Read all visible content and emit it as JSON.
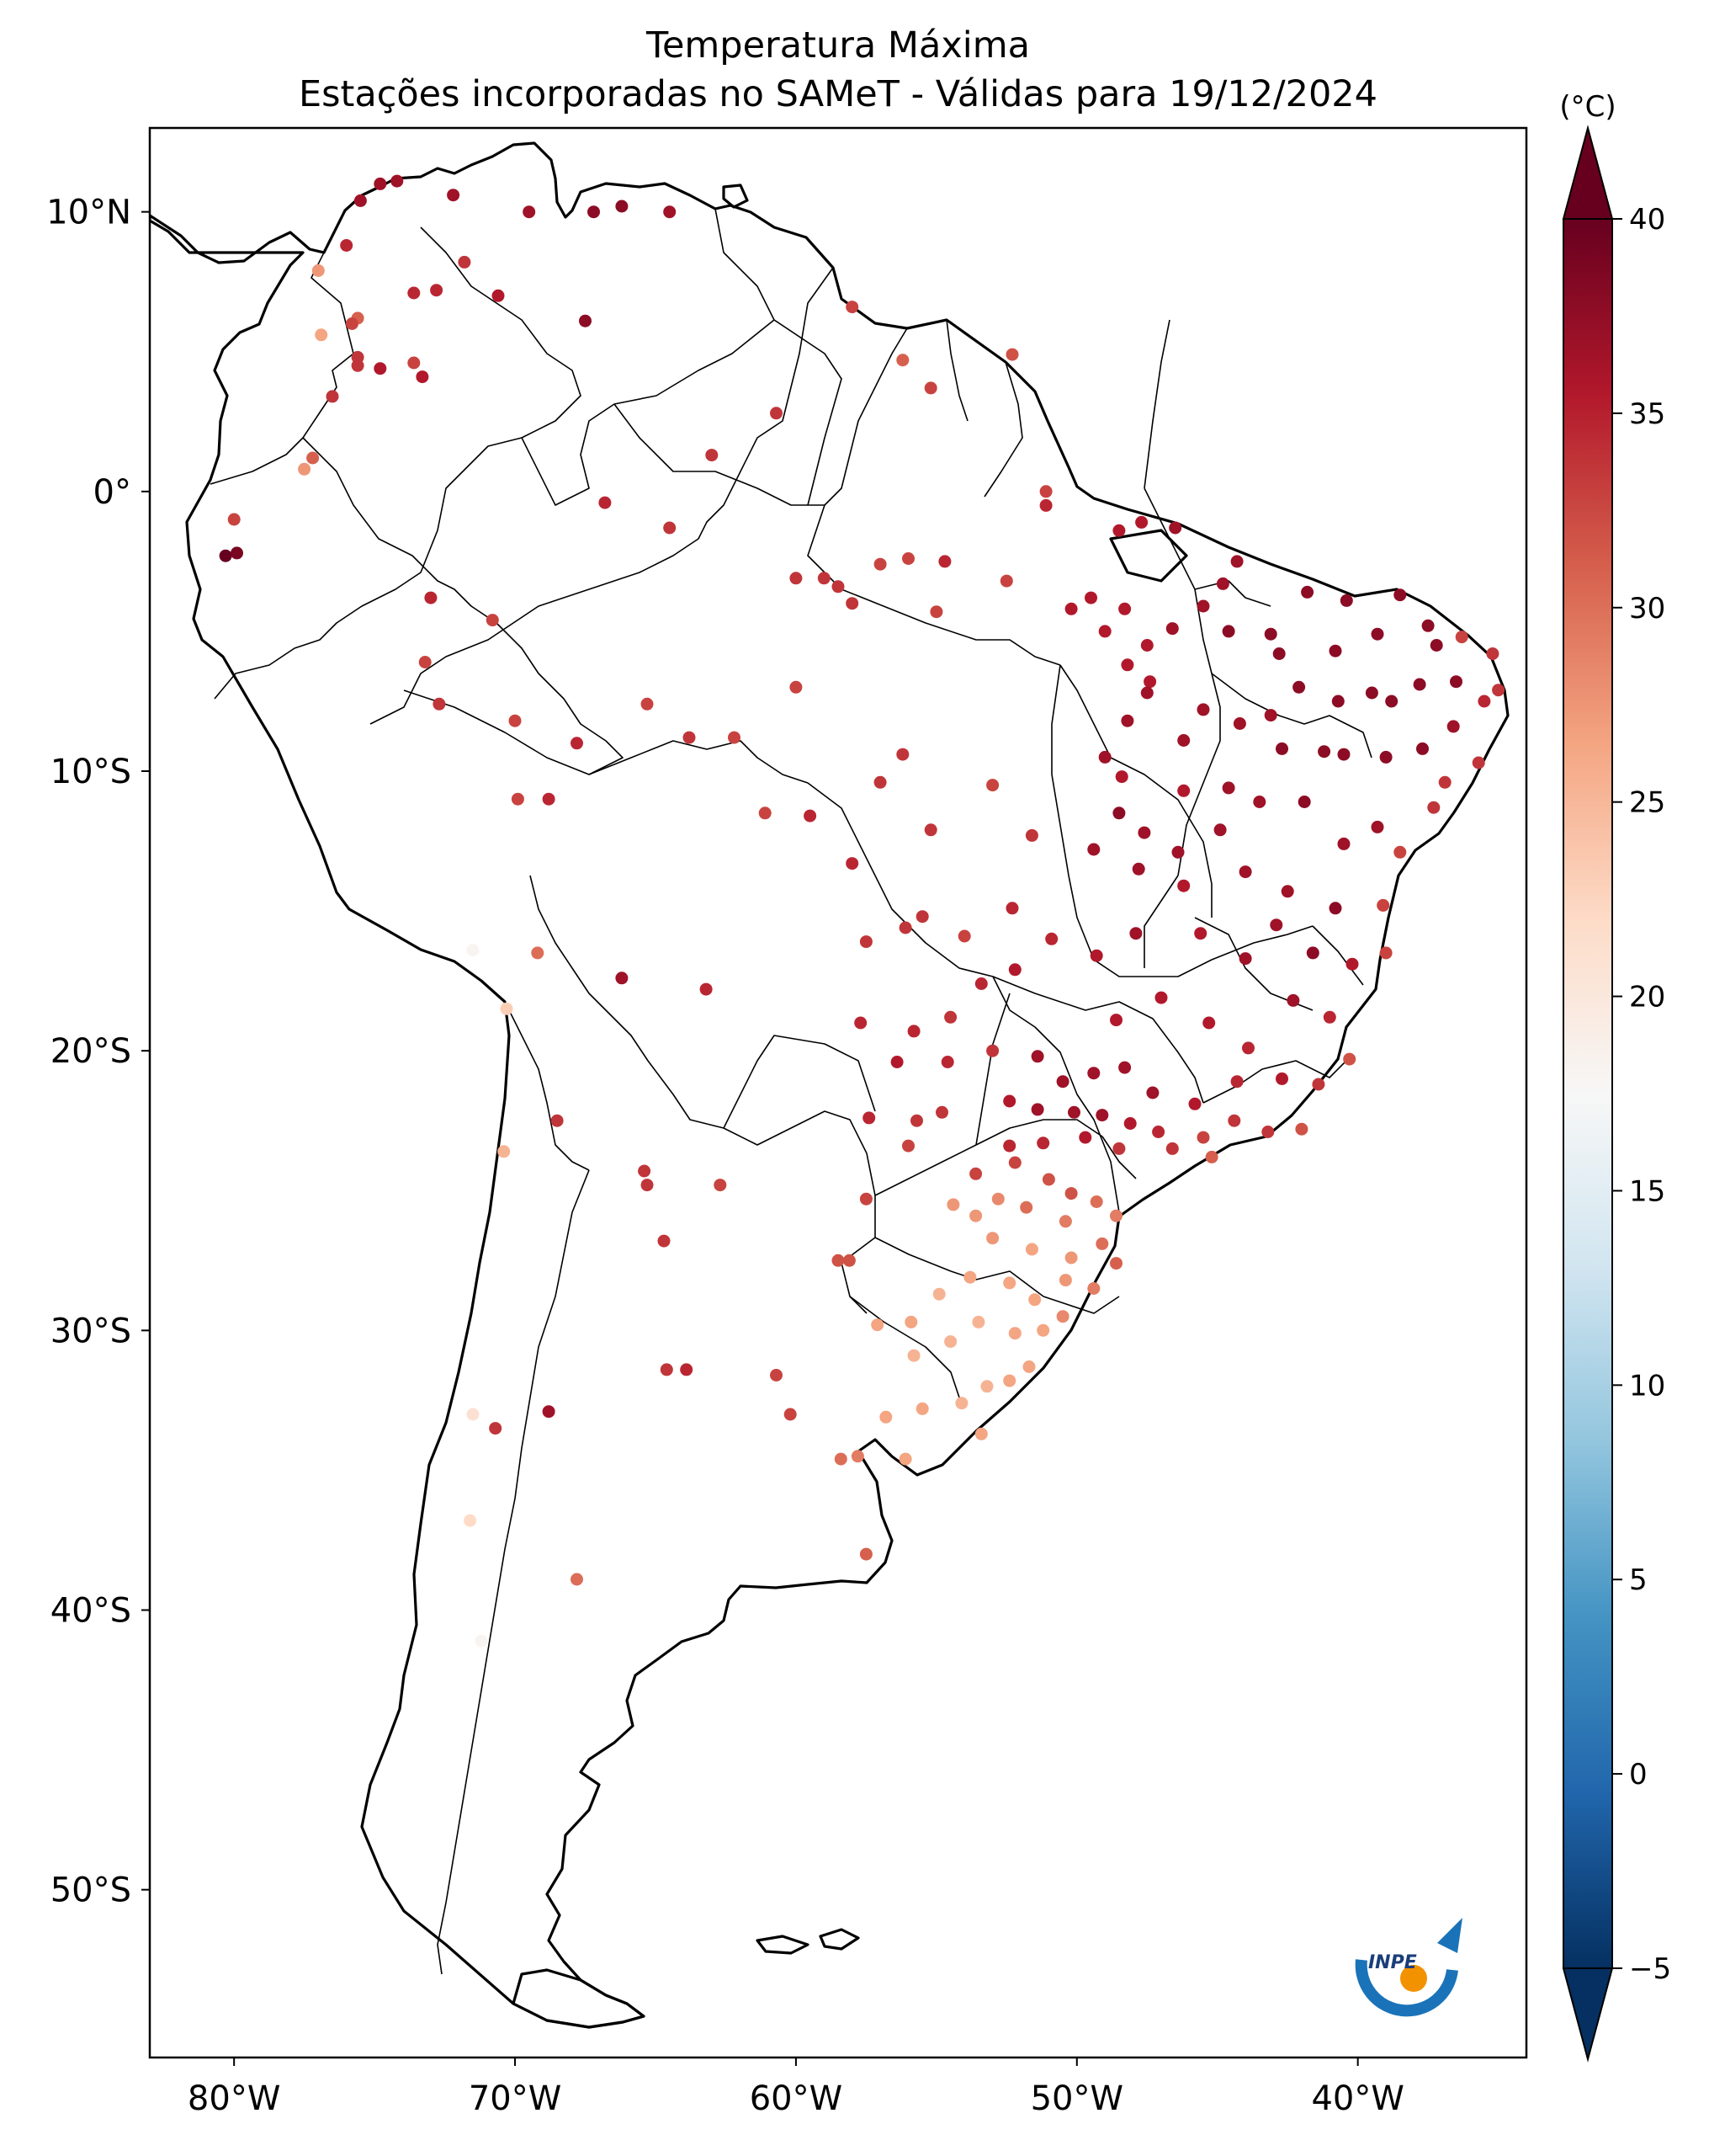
{
  "title": {
    "line1": "Temperatura Máxima",
    "line2": "Estações incorporadas no SAMeT - Válidas para 19/12/2024"
  },
  "map": {
    "lon_range": [
      -83,
      -34
    ],
    "lat_range": [
      -56,
      13
    ],
    "lat_ticks": [
      {
        "value": 10,
        "label": "10°N"
      },
      {
        "value": 0,
        "label": "0°"
      },
      {
        "value": -10,
        "label": "10°S"
      },
      {
        "value": -20,
        "label": "20°S"
      },
      {
        "value": -30,
        "label": "30°S"
      },
      {
        "value": -40,
        "label": "40°S"
      },
      {
        "value": -50,
        "label": "50°S"
      }
    ],
    "lon_ticks": [
      {
        "value": -80,
        "label": "80°W"
      },
      {
        "value": -70,
        "label": "70°W"
      },
      {
        "value": -60,
        "label": "60°W"
      },
      {
        "value": -50,
        "label": "50°W"
      },
      {
        "value": -40,
        "label": "40°W"
      }
    ]
  },
  "colorbar": {
    "unit_label": "(°C)",
    "min": -5,
    "max": 40,
    "ticks": [
      -5,
      0,
      5,
      10,
      15,
      20,
      25,
      30,
      35,
      40
    ],
    "extend": "both",
    "colormap": "RdBu_r"
  },
  "logo": {
    "text": "INPE",
    "ring_color": "#1a73b8",
    "dot_color": "#f39200"
  },
  "chart_data": {
    "type": "scatter",
    "title": "Temperatura Máxima — Estações incorporadas no SAMeT - Válidas para 19/12/2024",
    "x_label": "longitude",
    "y_label": "latitude",
    "xlim": [
      -83,
      -34
    ],
    "ylim": [
      -56,
      13
    ],
    "value_label": "Temperatura máxima (°C)",
    "points": [
      [
        -75.5,
        10.4,
        37
      ],
      [
        -74.8,
        11.0,
        37
      ],
      [
        -74.2,
        11.1,
        37
      ],
      [
        -72.2,
        10.6,
        37
      ],
      [
        -69.5,
        10.0,
        37
      ],
      [
        -66.2,
        10.2,
        38
      ],
      [
        -67.2,
        10.0,
        38
      ],
      [
        -64.5,
        10.0,
        37
      ],
      [
        -76.0,
        8.8,
        35
      ],
      [
        -77.0,
        7.9,
        27
      ],
      [
        -71.8,
        8.2,
        34
      ],
      [
        -73.6,
        7.1,
        35
      ],
      [
        -72.8,
        7.2,
        35
      ],
      [
        -70.6,
        7.0,
        36
      ],
      [
        -67.5,
        6.1,
        38
      ],
      [
        -75.6,
        6.2,
        31
      ],
      [
        -75.8,
        6.0,
        33
      ],
      [
        -76.9,
        5.6,
        26
      ],
      [
        -75.6,
        4.8,
        34
      ],
      [
        -75.6,
        4.5,
        34
      ],
      [
        -74.8,
        4.4,
        36
      ],
      [
        -73.6,
        4.6,
        33
      ],
      [
        -73.3,
        4.1,
        36
      ],
      [
        -76.5,
        3.4,
        34
      ],
      [
        -77.2,
        1.2,
        31
      ],
      [
        -77.5,
        0.8,
        27
      ],
      [
        -80.0,
        -1.0,
        33
      ],
      [
        -80.3,
        -2.3,
        40
      ],
      [
        -79.9,
        -2.2,
        39
      ],
      [
        -66.8,
        -0.4,
        35
      ],
      [
        -63.0,
        1.3,
        34
      ],
      [
        -60.7,
        2.8,
        34
      ],
      [
        -58.0,
        6.6,
        33
      ],
      [
        -56.2,
        4.7,
        31
      ],
      [
        -55.2,
        3.7,
        33
      ],
      [
        -52.3,
        4.9,
        32
      ],
      [
        -51.1,
        0.0,
        33
      ],
      [
        -51.1,
        -0.5,
        35
      ],
      [
        -48.5,
        -1.4,
        36
      ],
      [
        -47.7,
        -1.1,
        36
      ],
      [
        -46.5,
        -1.3,
        37
      ],
      [
        -44.3,
        -2.5,
        37
      ],
      [
        -64.5,
        -1.3,
        34
      ],
      [
        -60.0,
        -3.1,
        34
      ],
      [
        -59.0,
        -3.1,
        34
      ],
      [
        -58.5,
        -3.4,
        34
      ],
      [
        -57.0,
        -2.6,
        33
      ],
      [
        -56.0,
        -2.4,
        33
      ],
      [
        -54.7,
        -2.5,
        35
      ],
      [
        -55.0,
        -4.3,
        33
      ],
      [
        -52.5,
        -3.2,
        33
      ],
      [
        -49.5,
        -3.8,
        36
      ],
      [
        -50.2,
        -4.2,
        36
      ],
      [
        -48.3,
        -4.2,
        36
      ],
      [
        -49.0,
        -5.0,
        36
      ],
      [
        -47.5,
        -5.5,
        36
      ],
      [
        -48.2,
        -6.2,
        36
      ],
      [
        -47.4,
        -6.8,
        36
      ],
      [
        -44.8,
        -3.3,
        37
      ],
      [
        -45.5,
        -4.1,
        37
      ],
      [
        -46.6,
        -4.9,
        37
      ],
      [
        -44.6,
        -5.0,
        38
      ],
      [
        -43.1,
        -5.1,
        38
      ],
      [
        -42.8,
        -5.8,
        38
      ],
      [
        -41.8,
        -3.6,
        38
      ],
      [
        -40.4,
        -3.9,
        38
      ],
      [
        -40.8,
        -5.7,
        38
      ],
      [
        -39.3,
        -5.1,
        38
      ],
      [
        -38.5,
        -3.7,
        38
      ],
      [
        -37.5,
        -4.8,
        38
      ],
      [
        -37.2,
        -5.5,
        38
      ],
      [
        -36.3,
        -5.2,
        33
      ],
      [
        -35.2,
        -5.8,
        34
      ],
      [
        -35.0,
        -7.1,
        34
      ],
      [
        -35.5,
        -7.5,
        35
      ],
      [
        -36.5,
        -6.8,
        38
      ],
      [
        -37.8,
        -6.9,
        38
      ],
      [
        -38.8,
        -7.5,
        38
      ],
      [
        -39.5,
        -7.2,
        38
      ],
      [
        -40.7,
        -7.5,
        38
      ],
      [
        -42.1,
        -7.0,
        38
      ],
      [
        -43.1,
        -8.0,
        37
      ],
      [
        -44.2,
        -8.3,
        37
      ],
      [
        -45.5,
        -7.8,
        37
      ],
      [
        -46.2,
        -8.9,
        37
      ],
      [
        -47.5,
        -7.2,
        37
      ],
      [
        -48.2,
        -8.2,
        37
      ],
      [
        -49.0,
        -9.5,
        37
      ],
      [
        -48.4,
        -10.2,
        36
      ],
      [
        -46.2,
        -10.7,
        36
      ],
      [
        -44.6,
        -10.6,
        37
      ],
      [
        -42.7,
        -9.2,
        38
      ],
      [
        -41.2,
        -9.3,
        38
      ],
      [
        -40.5,
        -9.4,
        38
      ],
      [
        -39.0,
        -9.5,
        38
      ],
      [
        -37.7,
        -9.2,
        38
      ],
      [
        -36.6,
        -8.4,
        37
      ],
      [
        -35.7,
        -9.7,
        34
      ],
      [
        -36.9,
        -10.4,
        34
      ],
      [
        -37.3,
        -11.3,
        34
      ],
      [
        -38.5,
        -12.9,
        33
      ],
      [
        -39.3,
        -12.0,
        37
      ],
      [
        -40.5,
        -12.6,
        37
      ],
      [
        -41.9,
        -11.1,
        38
      ],
      [
        -43.5,
        -11.1,
        37
      ],
      [
        -44.9,
        -12.1,
        37
      ],
      [
        -46.4,
        -12.9,
        37
      ],
      [
        -47.6,
        -12.2,
        37
      ],
      [
        -48.5,
        -11.5,
        38
      ],
      [
        -49.4,
        -12.8,
        37
      ],
      [
        -47.8,
        -13.5,
        37
      ],
      [
        -46.2,
        -14.1,
        36
      ],
      [
        -44.0,
        -13.6,
        37
      ],
      [
        -42.5,
        -14.3,
        37
      ],
      [
        -40.8,
        -14.9,
        38
      ],
      [
        -39.1,
        -14.8,
        33
      ],
      [
        -39.0,
        -16.5,
        33
      ],
      [
        -40.2,
        -16.9,
        36
      ],
      [
        -41.6,
        -16.5,
        38
      ],
      [
        -42.9,
        -15.5,
        37
      ],
      [
        -44.0,
        -16.7,
        37
      ],
      [
        -45.6,
        -15.8,
        36
      ],
      [
        -47.9,
        -15.8,
        37
      ],
      [
        -49.3,
        -16.6,
        36
      ],
      [
        -50.9,
        -16.0,
        35
      ],
      [
        -52.2,
        -17.1,
        36
      ],
      [
        -48.6,
        -18.9,
        36
      ],
      [
        -47.0,
        -18.1,
        36
      ],
      [
        -45.3,
        -19.0,
        36
      ],
      [
        -43.9,
        -19.9,
        35
      ],
      [
        -42.3,
        -18.2,
        37
      ],
      [
        -41.0,
        -18.8,
        35
      ],
      [
        -40.3,
        -20.3,
        32
      ],
      [
        -41.4,
        -21.2,
        34
      ],
      [
        -42.7,
        -21.0,
        36
      ],
      [
        -44.3,
        -21.1,
        35
      ],
      [
        -45.8,
        -21.9,
        36
      ],
      [
        -47.3,
        -21.5,
        37
      ],
      [
        -48.3,
        -20.6,
        37
      ],
      [
        -49.4,
        -20.8,
        37
      ],
      [
        -50.5,
        -21.1,
        37
      ],
      [
        -51.4,
        -20.2,
        37
      ],
      [
        -52.4,
        -21.8,
        36
      ],
      [
        -51.4,
        -22.1,
        37
      ],
      [
        -50.1,
        -22.2,
        37
      ],
      [
        -49.1,
        -22.3,
        37
      ],
      [
        -48.1,
        -22.6,
        36
      ],
      [
        -47.1,
        -22.9,
        35
      ],
      [
        -46.6,
        -23.5,
        34
      ],
      [
        -45.5,
        -23.1,
        33
      ],
      [
        -44.4,
        -22.5,
        34
      ],
      [
        -43.2,
        -22.9,
        34
      ],
      [
        -42.0,
        -22.8,
        32
      ],
      [
        -45.2,
        -23.8,
        31
      ],
      [
        -48.5,
        -23.5,
        34
      ],
      [
        -49.7,
        -23.1,
        36
      ],
      [
        -51.2,
        -23.3,
        35
      ],
      [
        -52.4,
        -23.4,
        35
      ],
      [
        -53.6,
        -24.4,
        33
      ],
      [
        -52.2,
        -24.0,
        33
      ],
      [
        -51.0,
        -24.6,
        32
      ],
      [
        -50.2,
        -25.1,
        32
      ],
      [
        -49.3,
        -25.4,
        30
      ],
      [
        -48.6,
        -25.9,
        29
      ],
      [
        -50.4,
        -26.1,
        29
      ],
      [
        -51.8,
        -25.6,
        30
      ],
      [
        -52.8,
        -25.3,
        28
      ],
      [
        -53.6,
        -25.9,
        27
      ],
      [
        -54.4,
        -25.5,
        27
      ],
      [
        -53.0,
        -26.7,
        27
      ],
      [
        -51.6,
        -27.1,
        26
      ],
      [
        -50.2,
        -27.4,
        27
      ],
      [
        -49.1,
        -26.9,
        30
      ],
      [
        -48.6,
        -27.6,
        31
      ],
      [
        -49.4,
        -28.5,
        29
      ],
      [
        -50.4,
        -28.2,
        27
      ],
      [
        -51.5,
        -28.9,
        26
      ],
      [
        -52.4,
        -28.3,
        26
      ],
      [
        -53.8,
        -28.1,
        26
      ],
      [
        -54.9,
        -28.7,
        25
      ],
      [
        -55.9,
        -29.7,
        26
      ],
      [
        -57.1,
        -29.8,
        26
      ],
      [
        -55.8,
        -30.9,
        25
      ],
      [
        -54.5,
        -30.4,
        25
      ],
      [
        -53.5,
        -29.7,
        25
      ],
      [
        -52.2,
        -30.1,
        26
      ],
      [
        -51.2,
        -30.0,
        26
      ],
      [
        -50.5,
        -29.5,
        28
      ],
      [
        -51.7,
        -31.3,
        26
      ],
      [
        -52.4,
        -31.8,
        26
      ],
      [
        -53.2,
        -32.0,
        25
      ],
      [
        -54.1,
        -32.6,
        25
      ],
      [
        -53.4,
        -33.7,
        26
      ],
      [
        -55.5,
        -32.8,
        26
      ],
      [
        -56.8,
        -33.1,
        26
      ],
      [
        -56.1,
        -34.6,
        26
      ],
      [
        -57.8,
        -34.5,
        29
      ],
      [
        -58.4,
        -34.6,
        30
      ],
      [
        -57.5,
        -38.0,
        31
      ],
      [
        -60.2,
        -33.0,
        33
      ],
      [
        -63.9,
        -31.4,
        35
      ],
      [
        -68.8,
        -32.9,
        37
      ],
      [
        -70.7,
        -33.5,
        34
      ],
      [
        -71.5,
        -33.0,
        21
      ],
      [
        -71.6,
        -36.8,
        22
      ],
      [
        -67.8,
        -38.9,
        30
      ],
      [
        -71.2,
        -41.1,
        18
      ],
      [
        -65.3,
        -24.8,
        34
      ],
      [
        -64.7,
        -26.8,
        34
      ],
      [
        -65.4,
        -24.3,
        34
      ],
      [
        -68.5,
        -22.5,
        34
      ],
      [
        -70.3,
        -18.5,
        23
      ],
      [
        -70.4,
        -23.6,
        25
      ],
      [
        -71.5,
        -16.4,
        18
      ],
      [
        -69.2,
        -16.5,
        30
      ],
      [
        -66.2,
        -17.4,
        37
      ],
      [
        -63.2,
        -17.8,
        35
      ],
      [
        -61.1,
        -11.5,
        33
      ],
      [
        -63.8,
        -8.8,
        34
      ],
      [
        -67.8,
        -9.0,
        35
      ],
      [
        -70.0,
        -8.2,
        33
      ],
      [
        -72.7,
        -7.6,
        34
      ],
      [
        -70.8,
        -4.6,
        33
      ],
      [
        -73.0,
        -3.8,
        35
      ],
      [
        -73.2,
        -6.1,
        33
      ],
      [
        -69.9,
        -11.0,
        33
      ],
      [
        -68.8,
        -11.0,
        35
      ],
      [
        -65.3,
        -7.6,
        33
      ],
      [
        -62.2,
        -8.8,
        33
      ],
      [
        -60.0,
        -7.0,
        33
      ],
      [
        -58.0,
        -4.0,
        34
      ],
      [
        -56.2,
        -9.4,
        34
      ],
      [
        -55.2,
        -12.1,
        34
      ],
      [
        -55.5,
        -15.2,
        34
      ],
      [
        -54.0,
        -15.9,
        33
      ],
      [
        -56.1,
        -15.6,
        34
      ],
      [
        -57.5,
        -16.1,
        34
      ],
      [
        -58.0,
        -13.3,
        35
      ],
      [
        -59.5,
        -11.6,
        35
      ],
      [
        -57.0,
        -10.4,
        34
      ],
      [
        -53.0,
        -10.5,
        33
      ],
      [
        -51.6,
        -12.3,
        34
      ],
      [
        -52.3,
        -14.9,
        35
      ],
      [
        -53.4,
        -17.6,
        35
      ],
      [
        -54.5,
        -18.8,
        34
      ],
      [
        -55.8,
        -19.3,
        35
      ],
      [
        -57.7,
        -19.0,
        35
      ],
      [
        -56.4,
        -20.4,
        36
      ],
      [
        -54.6,
        -20.4,
        35
      ],
      [
        -53.0,
        -20.0,
        34
      ],
      [
        -55.7,
        -22.5,
        34
      ],
      [
        -54.8,
        -22.2,
        34
      ],
      [
        -57.4,
        -22.4,
        35
      ],
      [
        -56.0,
        -23.4,
        33
      ],
      [
        -57.5,
        -25.3,
        33
      ],
      [
        -58.5,
        -27.5,
        32
      ],
      [
        -62.7,
        -24.8,
        33
      ],
      [
        -64.6,
        -31.4,
        34
      ],
      [
        -60.7,
        -31.6,
        33
      ],
      [
        -58.1,
        -27.5,
        32
      ]
    ]
  }
}
